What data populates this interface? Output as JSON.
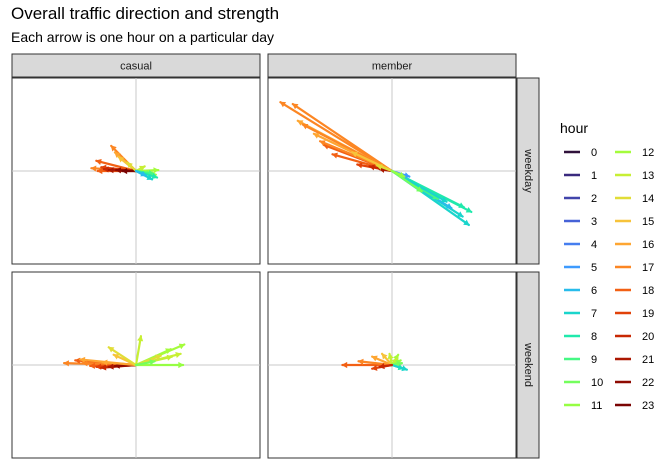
{
  "title": "Overall traffic direction and strength",
  "subtitle": "Each arrow is one hour on a particular day",
  "chart_data": {
    "type": "vector-field",
    "title": "Overall traffic direction and strength",
    "subtitle": "Each arrow is one hour on a particular day",
    "xlabel": "",
    "ylabel": "",
    "xlim": [
      -1,
      1
    ],
    "ylim": [
      -1,
      1
    ],
    "grid": "zero lines only",
    "facet_columns": [
      "casual",
      "member"
    ],
    "facet_rows": [
      "weekday",
      "weekend"
    ],
    "legend": {
      "title": "hour",
      "placement": "right",
      "entries": [
        {
          "label": "0",
          "color": "#30123b"
        },
        {
          "label": "1",
          "color": "#3a2a7e"
        },
        {
          "label": "2",
          "color": "#4145ab"
        },
        {
          "label": "3",
          "color": "#4662d7"
        },
        {
          "label": "4",
          "color": "#467eef"
        },
        {
          "label": "5",
          "color": "#3e9bfe"
        },
        {
          "label": "6",
          "color": "#28bceb"
        },
        {
          "label": "7",
          "color": "#1ad5cc"
        },
        {
          "label": "8",
          "color": "#20e9ac"
        },
        {
          "label": "9",
          "color": "#46f884"
        },
        {
          "label": "10",
          "color": "#74fe5d"
        },
        {
          "label": "11",
          "color": "#96fe43"
        },
        {
          "label": "12",
          "color": "#a4fc3c"
        },
        {
          "label": "13",
          "color": "#c7ef34"
        },
        {
          "label": "14",
          "color": "#e1dd37"
        },
        {
          "label": "15",
          "color": "#f7c33a"
        },
        {
          "label": "16",
          "color": "#fea632"
        },
        {
          "label": "17",
          "color": "#fc8623"
        },
        {
          "label": "18",
          "color": "#f26014"
        },
        {
          "label": "19",
          "color": "#e14209"
        },
        {
          "label": "20",
          "color": "#c82803"
        },
        {
          "label": "21",
          "color": "#ab1701"
        },
        {
          "label": "22",
          "color": "#8e0a01"
        },
        {
          "label": "23",
          "color": "#7a0403"
        }
      ]
    },
    "panels": [
      {
        "column": "casual",
        "row": "weekday",
        "arrows": [
          {
            "hour": 17,
            "dx": -0.2,
            "dy": 0.27
          },
          {
            "hour": 16,
            "dx": -0.17,
            "dy": 0.2
          },
          {
            "hour": 15,
            "dx": -0.14,
            "dy": 0.15
          },
          {
            "hour": 18,
            "dx": -0.32,
            "dy": 0.11
          },
          {
            "hour": 17,
            "dx": -0.36,
            "dy": 0.03
          },
          {
            "hour": 18,
            "dx": -0.31,
            "dy": 0.0
          },
          {
            "hour": 19,
            "dx": -0.28,
            "dy": 0.04
          },
          {
            "hour": 20,
            "dx": -0.26,
            "dy": 0.02
          },
          {
            "hour": 21,
            "dx": -0.22,
            "dy": 0.01
          },
          {
            "hour": 22,
            "dx": -0.16,
            "dy": 0.01
          },
          {
            "hour": 23,
            "dx": -0.11,
            "dy": 0.0
          },
          {
            "hour": 14,
            "dx": -0.07,
            "dy": 0.09
          },
          {
            "hour": 13,
            "dx": 0.07,
            "dy": 0.05
          },
          {
            "hour": 12,
            "dx": 0.18,
            "dy": 0.01
          },
          {
            "hour": 11,
            "dx": 0.16,
            "dy": -0.04
          },
          {
            "hour": 10,
            "dx": 0.12,
            "dy": -0.03
          },
          {
            "hour": 9,
            "dx": 0.14,
            "dy": -0.03
          },
          {
            "hour": 8,
            "dx": 0.17,
            "dy": -0.07
          },
          {
            "hour": 7,
            "dx": 0.13,
            "dy": -0.09
          },
          {
            "hour": 6,
            "dx": 0.08,
            "dy": -0.05
          }
        ]
      },
      {
        "column": "member",
        "row": "weekday",
        "arrows": [
          {
            "hour": 17,
            "dx": -0.9,
            "dy": 0.74
          },
          {
            "hour": 17,
            "dx": -0.8,
            "dy": 0.72
          },
          {
            "hour": 16,
            "dx": -0.76,
            "dy": 0.54
          },
          {
            "hour": 17,
            "dx": -0.72,
            "dy": 0.5
          },
          {
            "hour": 16,
            "dx": -0.63,
            "dy": 0.4
          },
          {
            "hour": 18,
            "dx": -0.55,
            "dy": 0.28
          },
          {
            "hour": 17,
            "dx": -0.58,
            "dy": 0.32
          },
          {
            "hour": 15,
            "dx": -0.32,
            "dy": 0.2
          },
          {
            "hour": 18,
            "dx": -0.48,
            "dy": 0.18
          },
          {
            "hour": 19,
            "dx": -0.28,
            "dy": 0.07
          },
          {
            "hour": 20,
            "dx": -0.18,
            "dy": 0.05
          },
          {
            "hour": 21,
            "dx": -0.1,
            "dy": 0.02
          },
          {
            "hour": 14,
            "dx": -0.12,
            "dy": 0.06
          },
          {
            "hour": 7,
            "dx": 0.62,
            "dy": -0.58
          },
          {
            "hour": 7,
            "dx": 0.57,
            "dy": -0.49
          },
          {
            "hour": 8,
            "dx": 0.64,
            "dy": -0.44
          },
          {
            "hour": 6,
            "dx": 0.48,
            "dy": -0.4
          },
          {
            "hour": 8,
            "dx": 0.58,
            "dy": -0.39
          },
          {
            "hour": 9,
            "dx": 0.37,
            "dy": -0.3
          },
          {
            "hour": 7,
            "dx": 0.44,
            "dy": -0.33
          },
          {
            "hour": 10,
            "dx": 0.24,
            "dy": -0.22
          },
          {
            "hour": 5,
            "dx": 0.14,
            "dy": -0.06
          },
          {
            "hour": 11,
            "dx": 0.1,
            "dy": -0.06
          }
        ]
      },
      {
        "column": "casual",
        "row": "weekend",
        "arrows": [
          {
            "hour": 17,
            "dx": -0.58,
            "dy": 0.02
          },
          {
            "hour": 18,
            "dx": -0.49,
            "dy": 0.05
          },
          {
            "hour": 16,
            "dx": -0.45,
            "dy": 0.06
          },
          {
            "hour": 17,
            "dx": -0.43,
            "dy": 0.02
          },
          {
            "hour": 18,
            "dx": -0.37,
            "dy": -0.01
          },
          {
            "hour": 19,
            "dx": -0.32,
            "dy": -0.02
          },
          {
            "hour": 20,
            "dx": -0.28,
            "dy": -0.03
          },
          {
            "hour": 21,
            "dx": -0.22,
            "dy": -0.02
          },
          {
            "hour": 22,
            "dx": -0.17,
            "dy": -0.01
          },
          {
            "hour": 16,
            "dx": -0.27,
            "dy": 0.03
          },
          {
            "hour": 15,
            "dx": -0.18,
            "dy": 0.11
          },
          {
            "hour": 14,
            "dx": -0.22,
            "dy": 0.19
          },
          {
            "hour": 13,
            "dx": 0.04,
            "dy": 0.31
          },
          {
            "hour": 13,
            "dx": 0.36,
            "dy": 0.12
          },
          {
            "hour": 12,
            "dx": 0.39,
            "dy": 0.22
          },
          {
            "hour": 12,
            "dx": 0.28,
            "dy": 0.17
          },
          {
            "hour": 11,
            "dx": 0.38,
            "dy": 0.0
          },
          {
            "hour": 13,
            "dx": 0.29,
            "dy": 0.09
          },
          {
            "hour": 14,
            "dx": 0.2,
            "dy": 0.1
          },
          {
            "hour": 10,
            "dx": 0.15,
            "dy": 0.04
          }
        ]
      },
      {
        "column": "member",
        "row": "weekend",
        "arrows": [
          {
            "hour": 18,
            "dx": -0.4,
            "dy": 0.0
          },
          {
            "hour": 17,
            "dx": -0.27,
            "dy": 0.04
          },
          {
            "hour": 16,
            "dx": -0.16,
            "dy": 0.09
          },
          {
            "hour": 15,
            "dx": -0.08,
            "dy": 0.12
          },
          {
            "hour": 19,
            "dx": -0.16,
            "dy": -0.04
          },
          {
            "hour": 13,
            "dx": -0.02,
            "dy": 0.12
          },
          {
            "hour": 12,
            "dx": 0.05,
            "dy": 0.11
          },
          {
            "hour": 13,
            "dx": 0.04,
            "dy": 0.07
          },
          {
            "hour": 11,
            "dx": 0.07,
            "dy": 0.05
          },
          {
            "hour": 10,
            "dx": 0.08,
            "dy": 0.02
          },
          {
            "hour": 8,
            "dx": 0.09,
            "dy": -0.04
          },
          {
            "hour": 7,
            "dx": 0.12,
            "dy": -0.05
          },
          {
            "hour": 20,
            "dx": -0.1,
            "dy": -0.02
          }
        ]
      }
    ]
  }
}
